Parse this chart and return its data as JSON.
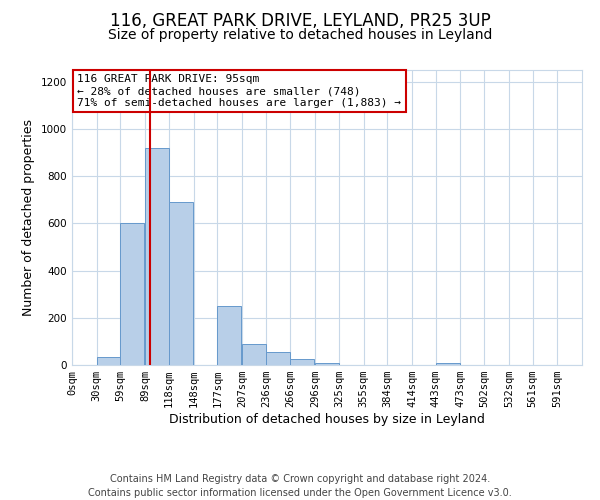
{
  "title": "116, GREAT PARK DRIVE, LEYLAND, PR25 3UP",
  "subtitle": "Size of property relative to detached houses in Leyland",
  "xlabel": "Distribution of detached houses by size in Leyland",
  "ylabel": "Number of detached properties",
  "bar_left_edges": [
    0,
    30,
    59,
    89,
    118,
    148,
    177,
    207,
    236,
    266,
    296,
    325,
    355,
    384,
    414,
    443,
    473,
    502,
    532,
    561
  ],
  "bar_heights": [
    0,
    35,
    600,
    920,
    690,
    0,
    250,
    90,
    55,
    25,
    10,
    0,
    0,
    0,
    0,
    10,
    0,
    0,
    0,
    0
  ],
  "bin_width": 29,
  "bar_color": "#b8cfe8",
  "bar_edge_color": "#6699cc",
  "vline_color": "#cc0000",
  "vline_x": 95,
  "annotation_text": "116 GREAT PARK DRIVE: 95sqm\n← 28% of detached houses are smaller (748)\n71% of semi-detached houses are larger (1,883) →",
  "annotation_box_color": "#cc0000",
  "xlim": [
    0,
    621
  ],
  "ylim": [
    0,
    1250
  ],
  "yticks": [
    0,
    200,
    400,
    600,
    800,
    1000,
    1200
  ],
  "xtick_labels": [
    "0sqm",
    "30sqm",
    "59sqm",
    "89sqm",
    "118sqm",
    "148sqm",
    "177sqm",
    "207sqm",
    "236sqm",
    "266sqm",
    "296sqm",
    "325sqm",
    "355sqm",
    "384sqm",
    "414sqm",
    "443sqm",
    "473sqm",
    "502sqm",
    "532sqm",
    "561sqm",
    "591sqm"
  ],
  "xtick_positions": [
    0,
    30,
    59,
    89,
    118,
    148,
    177,
    207,
    236,
    266,
    296,
    325,
    355,
    384,
    414,
    443,
    473,
    502,
    532,
    561,
    591
  ],
  "footer": "Contains HM Land Registry data © Crown copyright and database right 2024.\nContains public sector information licensed under the Open Government Licence v3.0.",
  "background_color": "#ffffff",
  "grid_color": "#c8d8e8",
  "title_fontsize": 12,
  "subtitle_fontsize": 10,
  "axis_label_fontsize": 9,
  "tick_fontsize": 7.5,
  "annotation_fontsize": 8,
  "footer_fontsize": 7
}
